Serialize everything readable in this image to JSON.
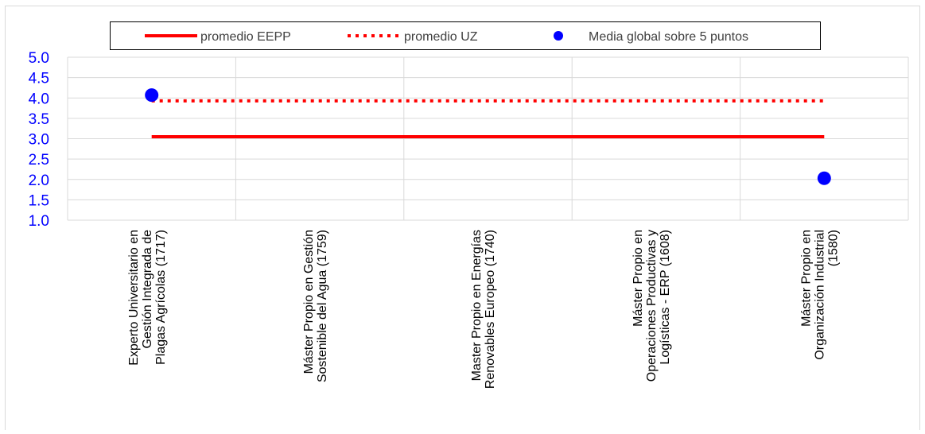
{
  "chart_data": {
    "type": "line",
    "categories": [
      [
        "Experto Universitario en",
        "Gestión Integrada de",
        "Plagas Agrícolas (1717)"
      ],
      [
        "Máster Propio en Gestión",
        "Sostenible del Agua (1759)"
      ],
      [
        "Master Propio en Energías",
        "Renovables Europeo (1740)"
      ],
      [
        "Máster Propio en",
        "Operaciones Productivas y",
        "Logísticas - ERP (1608)"
      ],
      [
        "Máster Propio en",
        "Organización Industrial",
        "(1580)"
      ]
    ],
    "series": [
      {
        "name": "promedio EEPP",
        "kind": "line",
        "style": "solid",
        "color": "#ff0000",
        "values": [
          3.05,
          3.05,
          3.05,
          3.05,
          3.05
        ]
      },
      {
        "name": "promedio UZ",
        "kind": "line",
        "style": "dotted",
        "color": "#ff0000",
        "values": [
          3.93,
          3.93,
          3.93,
          3.93,
          3.93
        ]
      },
      {
        "name": "Media global sobre 5 puntos",
        "kind": "scatter",
        "color": "#0000ff",
        "values": [
          4.07,
          null,
          null,
          null,
          2.03
        ]
      }
    ],
    "ylim": [
      1.0,
      5.0
    ],
    "yticks": [
      "1.0",
      "1.5",
      "2.0",
      "2.5",
      "3.0",
      "3.5",
      "4.0",
      "4.5",
      "5.0"
    ],
    "ytick_color": "#0000ff",
    "grid": true,
    "legend_position": "top"
  }
}
